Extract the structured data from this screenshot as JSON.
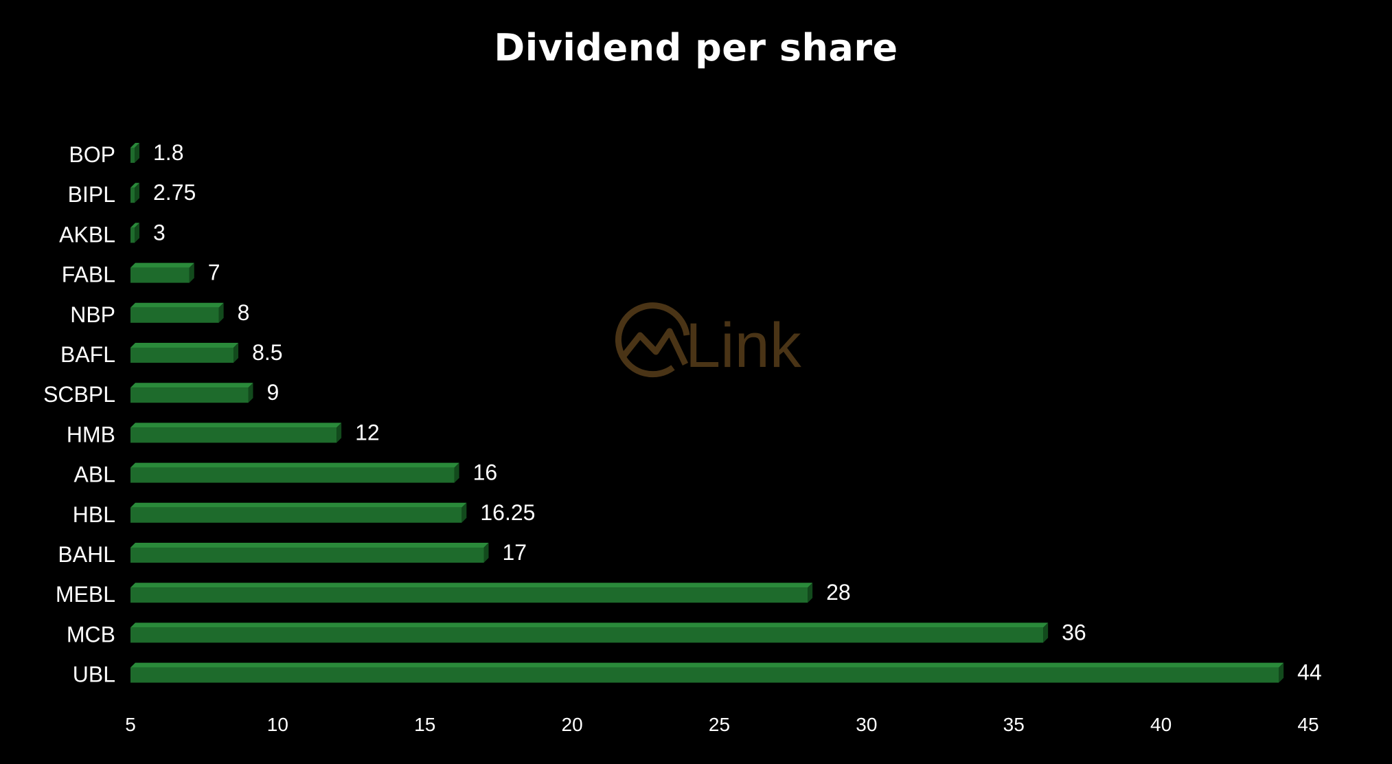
{
  "chart_data": {
    "type": "bar",
    "orientation": "horizontal",
    "title": "Dividend per share",
    "xlabel": "",
    "ylabel": "",
    "categories": [
      "BOP",
      "BIPL",
      "AKBL",
      "FABL",
      "NBP",
      "BAFL",
      "SCBPL",
      "HMB",
      "ABL",
      "HBL",
      "BAHL",
      "MEBL",
      "MCB",
      "UBL"
    ],
    "values": [
      1.8,
      2.75,
      3,
      7,
      8,
      8.5,
      9,
      12,
      16,
      16.25,
      17,
      28,
      36,
      44
    ],
    "data_labels": [
      "1.8",
      "2.75",
      "3",
      "7",
      "8",
      "8.5",
      "9",
      "12",
      "16",
      "16.25",
      "17",
      "28",
      "36",
      "44"
    ],
    "xlim": [
      5,
      45
    ],
    "xticks": [
      "5",
      "10",
      "15",
      "20",
      "25",
      "30",
      "35",
      "40",
      "45"
    ],
    "grid": false,
    "legend": "none",
    "bar_color": "#1e6b2c",
    "bar_top_color": "#2a8a3a",
    "bar_side_color": "#124a1c",
    "background": "#000000"
  },
  "watermark": {
    "text": "Link",
    "icon": "chart-circle-logo-icon",
    "color": "#4a3416"
  }
}
